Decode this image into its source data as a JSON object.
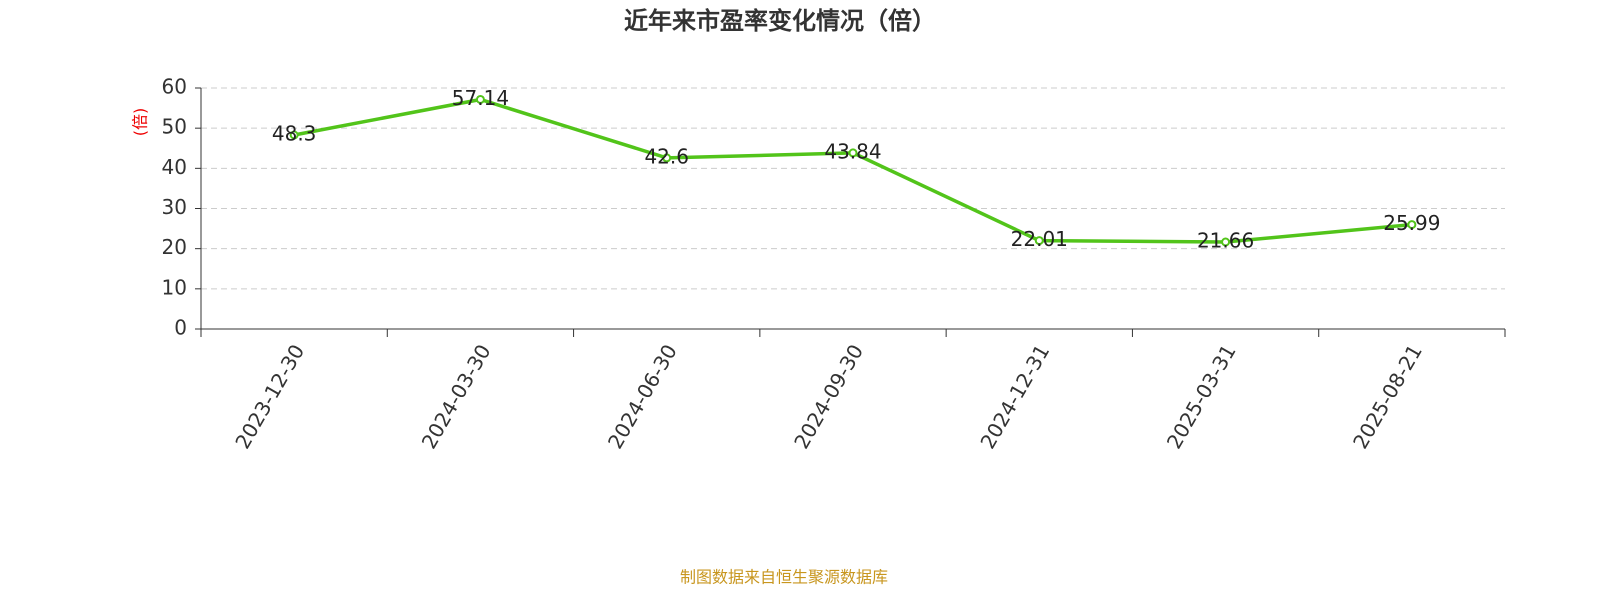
{
  "chart_data": {
    "type": "line",
    "title": "近年来市盈率变化情况（倍）",
    "y_label": "(倍)",
    "categories": [
      "2023-12-30",
      "2024-03-30",
      "2024-06-30",
      "2024-09-30",
      "2024-12-31",
      "2025-03-31",
      "2025-08-21"
    ],
    "values": [
      48.3,
      57.14,
      42.6,
      43.84,
      22.01,
      21.66,
      25.99
    ],
    "color": "#52c41a",
    "ylim": [
      0,
      60
    ],
    "yticks": [
      0,
      10,
      20,
      30,
      40,
      50,
      60
    ],
    "grid": true,
    "source": "制图数据来自恒生聚源数据库"
  }
}
